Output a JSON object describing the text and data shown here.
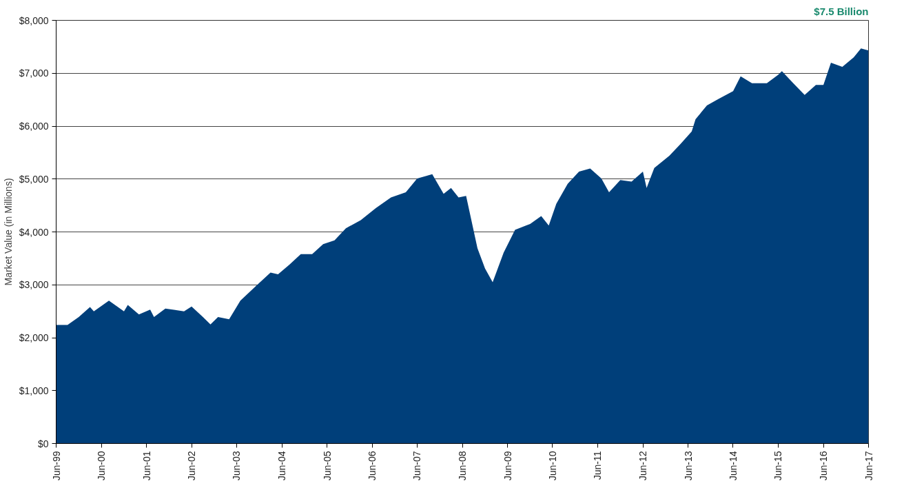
{
  "chart_data": {
    "type": "area",
    "ylabel": "Market Value (in Millions)",
    "annotations": [
      "$7.5 Billion"
    ],
    "x": [
      "1999-06",
      "1999-09",
      "1999-12",
      "2000-03",
      "2000-04",
      "2000-08",
      "2000-12",
      "2001-01",
      "2001-04",
      "2001-07",
      "2001-08",
      "2001-11",
      "2002-04",
      "2002-06",
      "2002-09",
      "2002-11",
      "2003-01",
      "2003-04",
      "2003-07",
      "2003-11",
      "2004-03",
      "2004-05",
      "2004-08",
      "2004-11",
      "2005-02",
      "2005-05",
      "2005-08",
      "2005-11",
      "2006-03",
      "2006-07",
      "2006-11",
      "2007-03",
      "2007-06",
      "2007-10",
      "2008-01",
      "2008-03",
      "2008-05",
      "2008-07",
      "2008-10",
      "2008-12",
      "2009-02",
      "2009-05",
      "2009-08",
      "2009-12",
      "2010-03",
      "2010-05",
      "2010-07",
      "2010-10",
      "2011-01",
      "2011-04",
      "2011-07",
      "2011-09",
      "2011-12",
      "2012-03",
      "2012-06",
      "2012-07",
      "2012-09",
      "2013-01",
      "2013-04",
      "2013-07",
      "2013-08",
      "2013-11",
      "2014-02",
      "2014-06",
      "2014-08",
      "2014-11",
      "2015-03",
      "2015-06",
      "2015-07",
      "2015-10",
      "2016-01",
      "2016-04",
      "2016-06",
      "2016-08",
      "2016-11",
      "2017-02",
      "2017-04",
      "2017-06"
    ],
    "series": [
      {
        "color": "#003f7a",
        "values": [
          2240,
          2240,
          2390,
          2580,
          2500,
          2700,
          2500,
          2620,
          2440,
          2530,
          2390,
          2550,
          2500,
          2590,
          2390,
          2250,
          2390,
          2350,
          2700,
          2970,
          3230,
          3200,
          3380,
          3580,
          3580,
          3770,
          3840,
          4070,
          4220,
          4450,
          4650,
          4750,
          5010,
          5090,
          4720,
          4830,
          4650,
          4680,
          3690,
          3310,
          3050,
          3610,
          4040,
          4150,
          4300,
          4120,
          4530,
          4910,
          5140,
          5200,
          5010,
          4750,
          4980,
          4950,
          5140,
          4830,
          5210,
          5440,
          5660,
          5900,
          6130,
          6390,
          6510,
          6660,
          6940,
          6810,
          6810,
          6970,
          7040,
          6810,
          6590,
          6780,
          6780,
          7200,
          7120,
          7300,
          7470,
          7430
        ]
      }
    ],
    "xlim": [
      "1999-06",
      "2017-06"
    ],
    "xticks": [
      {
        "value": "1999-06",
        "label": "Jun-99"
      },
      {
        "value": "2000-06",
        "label": "Jun-00"
      },
      {
        "value": "2001-06",
        "label": "Jun-01"
      },
      {
        "value": "2002-06",
        "label": "Jun-02"
      },
      {
        "value": "2003-06",
        "label": "Jun-03"
      },
      {
        "value": "2004-06",
        "label": "Jun-04"
      },
      {
        "value": "2005-06",
        "label": "Jun-05"
      },
      {
        "value": "2006-06",
        "label": "Jun-06"
      },
      {
        "value": "2007-06",
        "label": "Jun-07"
      },
      {
        "value": "2008-06",
        "label": "Jun-08"
      },
      {
        "value": "2009-06",
        "label": "Jun-09"
      },
      {
        "value": "2010-06",
        "label": "Jun-10"
      },
      {
        "value": "2011-06",
        "label": "Jun-11"
      },
      {
        "value": "2012-06",
        "label": "Jun-12"
      },
      {
        "value": "2013-06",
        "label": "Jun-13"
      },
      {
        "value": "2014-06",
        "label": "Jun-14"
      },
      {
        "value": "2015-06",
        "label": "Jun-15"
      },
      {
        "value": "2016-06",
        "label": "Jun-16"
      },
      {
        "value": "2017-06",
        "label": "Jun-17"
      }
    ],
    "ylim": [
      0,
      8000
    ],
    "yticks": [
      {
        "value": 0,
        "label": "$0"
      },
      {
        "value": 1000,
        "label": "$1,000"
      },
      {
        "value": 2000,
        "label": "$2,000"
      },
      {
        "value": 3000,
        "label": "$3,000"
      },
      {
        "value": 4000,
        "label": "$4,000"
      },
      {
        "value": 5000,
        "label": "$5,000"
      },
      {
        "value": 6000,
        "label": "$6,000"
      },
      {
        "value": 7000,
        "label": "$7,000"
      },
      {
        "value": 8000,
        "label": "$8,000"
      }
    ],
    "grid": "y"
  }
}
